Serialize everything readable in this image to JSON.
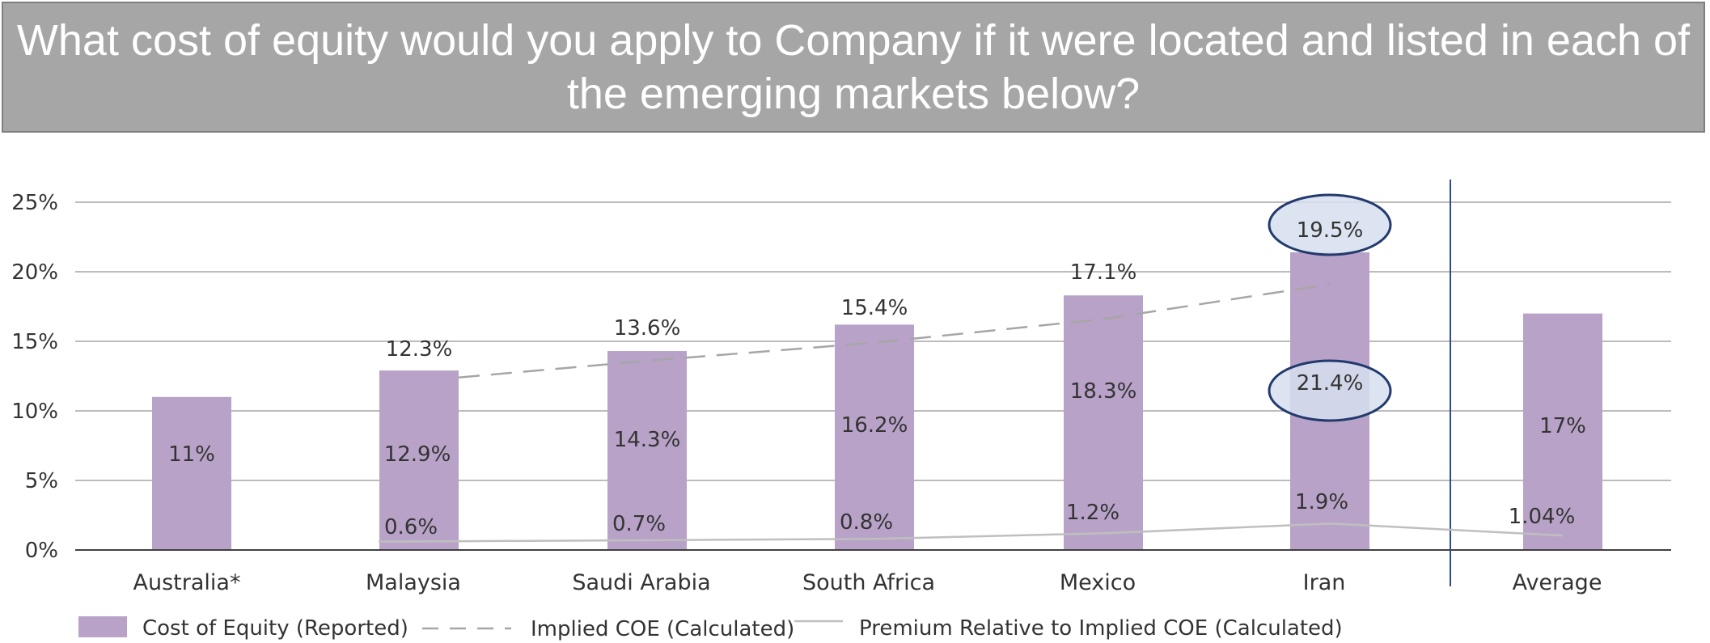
{
  "title": "What cost of equity would you apply to Company if it were located and listed in each of the emerging markets below?",
  "colors": {
    "bar": "#b8a2c8",
    "grid": "#a6a6a6",
    "axis": "#404040",
    "dashed": "#a6a6a6",
    "premium": "#bfbfbf",
    "divider": "#2f4a8c",
    "ellipse_fill": "#d6dfee",
    "ellipse_stroke": "#233a6e",
    "banner": "#a6a6a6"
  },
  "chart_data": {
    "type": "bar",
    "categories": [
      "Australia*",
      "Malaysia",
      "Saudi Arabia",
      "South Africa",
      "Mexico",
      "Iran",
      "Average"
    ],
    "ylim": [
      0,
      25
    ],
    "yticks": [
      0,
      5,
      10,
      15,
      20,
      25
    ],
    "ytick_labels": [
      "0%",
      "5%",
      "10%",
      "15%",
      "20%",
      "25%"
    ],
    "grid": true,
    "legend_position": "bottom-left",
    "series": [
      {
        "name": "Cost of Equity (Reported)",
        "type": "bar",
        "values": [
          11,
          12.9,
          14.3,
          16.2,
          18.3,
          21.4,
          17
        ],
        "labels": [
          "11%",
          "12.9%",
          "14.3%",
          "16.2%",
          "18.3%",
          "21.4%",
          "17%"
        ]
      },
      {
        "name": "Implied COE (Calculated)",
        "type": "line-dashed",
        "values": [
          null,
          12.3,
          13.6,
          15.4,
          17.1,
          19.5,
          null
        ],
        "labels": [
          "",
          "12.3%",
          "13.6%",
          "15.4%",
          "17.1%",
          "19.5%",
          ""
        ]
      },
      {
        "name": "Premium Relative to Implied COE (Calculated)",
        "type": "line",
        "values": [
          null,
          0.6,
          0.7,
          0.8,
          1.2,
          1.9,
          1.04
        ],
        "labels": [
          "",
          "0.6%",
          "0.7%",
          "0.8%",
          "1.2%",
          "1.9%",
          "1.04%"
        ]
      }
    ],
    "highlighted_labels": [
      "19.5%",
      "21.4%"
    ]
  }
}
